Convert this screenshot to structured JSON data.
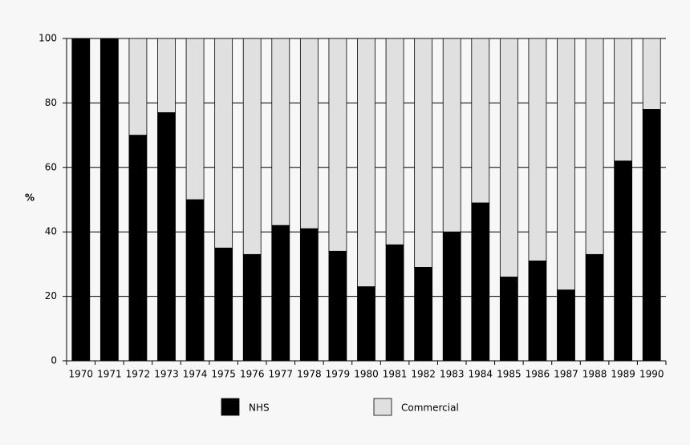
{
  "chart_data": {
    "type": "stacked_bar",
    "y_label": "%",
    "categories": [
      "1970",
      "1971",
      "1972",
      "1973",
      "1974",
      "1975",
      "1976",
      "1977",
      "1978",
      "1979",
      "1980",
      "1981",
      "1982",
      "1983",
      "1984",
      "1985",
      "1986",
      "1987",
      "1988",
      "1989",
      "1990"
    ],
    "series": [
      {
        "name": "NHS",
        "color": "#000000",
        "values": [
          100,
          100,
          70,
          77,
          50,
          35,
          33,
          42,
          41,
          34,
          23,
          36,
          29,
          40,
          49,
          26,
          31,
          22,
          33,
          62,
          78
        ]
      },
      {
        "name": "Commercial",
        "color": "#e0e0e0",
        "values": [
          0,
          0,
          30,
          23,
          50,
          65,
          67,
          58,
          59,
          66,
          77,
          64,
          71,
          60,
          51,
          74,
          69,
          78,
          67,
          38,
          22
        ]
      }
    ],
    "ylim": [
      0,
      100
    ],
    "yticks": [
      0,
      20,
      40,
      60,
      80,
      100
    ],
    "grid": true
  }
}
